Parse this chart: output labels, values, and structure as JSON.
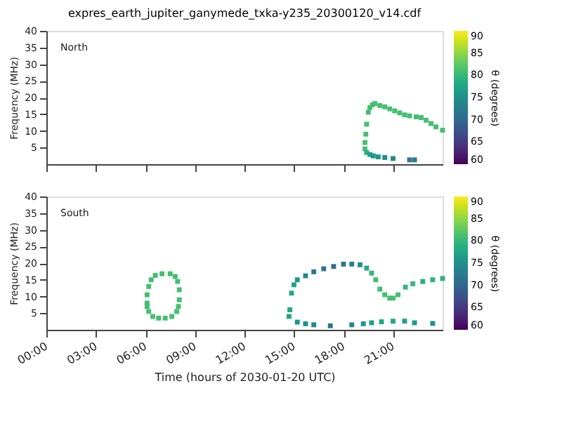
{
  "chart_data": [
    {
      "type": "scatter",
      "title": "expres_earth_jupiter_ganymede_txka-y235_20300120_v14.cdf",
      "ylabel": "Frequency (MHz)",
      "clabel": "θ (degrees)",
      "annotations": [
        "North"
      ],
      "xlim": [
        0,
        24
      ],
      "xticks": [
        {
          "value": 0,
          "label": null
        },
        {
          "value": 3,
          "label": null
        },
        {
          "value": 6,
          "label": null
        },
        {
          "value": 9,
          "label": null
        },
        {
          "value": 12,
          "label": null
        },
        {
          "value": 15,
          "label": null
        },
        {
          "value": 18,
          "label": null
        },
        {
          "value": 21,
          "label": null
        }
      ],
      "ylim": [
        0,
        40
      ],
      "yticks": [
        5,
        10,
        15,
        20,
        25,
        30,
        35,
        40
      ],
      "clim": [
        60,
        90
      ],
      "cticks": [
        60,
        65,
        70,
        75,
        80,
        85,
        90
      ],
      "tick_labels": "y",
      "grid": false,
      "marker": "square",
      "series": [
        {
          "x": [
            19.3,
            19.3,
            19.35,
            19.4,
            19.5,
            19.6,
            19.75,
            19.9,
            20.2,
            20.5,
            20.8,
            21.1,
            21.4,
            21.7,
            22.0,
            22.4,
            22.7,
            23.0,
            23.3,
            23.6,
            24.0,
            19.4,
            19.6,
            19.8,
            20.1,
            20.5,
            21.0,
            22.0,
            22.3
          ],
          "values": [
            4.6,
            6.5,
            9.0,
            12.0,
            15.6,
            17.0,
            17.8,
            18.2,
            17.6,
            17.2,
            16.6,
            16.0,
            15.4,
            14.8,
            14.5,
            14.2,
            14.0,
            13.2,
            12.2,
            11.2,
            10.2,
            3.5,
            2.9,
            2.5,
            2.2,
            2.0,
            1.7,
            1.3,
            1.3
          ],
          "cvalues": [
            81,
            81,
            81,
            81,
            81,
            81,
            81,
            81,
            81,
            81,
            81,
            81,
            81,
            81,
            81,
            81,
            81,
            81,
            81,
            81,
            81,
            79,
            77,
            76,
            76,
            75,
            74,
            72,
            72
          ]
        }
      ]
    },
    {
      "type": "scatter",
      "ylabel": "Frequency (MHz)",
      "xlabel": "Time (hours of 2030-01-20 UTC)",
      "clabel": "θ (degrees)",
      "annotations": [
        "South"
      ],
      "xlim": [
        0,
        24
      ],
      "xticks": [
        {
          "value": 0,
          "label": "00:00"
        },
        {
          "value": 3,
          "label": "03:00"
        },
        {
          "value": 6,
          "label": "06:00"
        },
        {
          "value": 9,
          "label": "09:00"
        },
        {
          "value": 12,
          "label": "12:00"
        },
        {
          "value": 15,
          "label": "15:00"
        },
        {
          "value": 18,
          "label": "18:00"
        },
        {
          "value": 21,
          "label": "21:00"
        }
      ],
      "ylim": [
        0,
        40
      ],
      "yticks": [
        5,
        10,
        15,
        20,
        25,
        30,
        35,
        40
      ],
      "clim": [
        60,
        90
      ],
      "cticks": [
        60,
        65,
        70,
        75,
        80,
        85,
        90
      ],
      "grid": false,
      "marker": "square",
      "series": [
        {
          "x": [
            6.1,
            6.1,
            6.2,
            6.35,
            6.6,
            7.0,
            7.5,
            7.8,
            7.95,
            8.05,
            8.05,
            8.0,
            7.9,
            7.6,
            7.2,
            6.8,
            6.45,
            6.2,
            6.1,
            14.7,
            14.75,
            14.85,
            15.0,
            15.2,
            15.7,
            16.2,
            16.8,
            17.4,
            18.0,
            18.5,
            19.0,
            19.4,
            19.7,
            19.95,
            20.2,
            20.5,
            20.8,
            21.0,
            21.3,
            21.75,
            22.2,
            22.8,
            23.4,
            24.0,
            15.2,
            15.7,
            16.2,
            17.2,
            18.5,
            19.2,
            19.7,
            20.3,
            21.0,
            21.7,
            22.3,
            23.4
          ],
          "values": [
            8.0,
            10.5,
            13.0,
            15.0,
            16.3,
            16.8,
            16.8,
            16.0,
            14.5,
            12.0,
            9.0,
            7.0,
            5.5,
            4.0,
            3.5,
            3.5,
            4.0,
            5.5,
            7.0,
            4.0,
            6.0,
            11.0,
            13.5,
            15.0,
            16.2,
            17.4,
            18.3,
            19.0,
            19.7,
            19.7,
            19.5,
            18.5,
            17.0,
            15.0,
            12.2,
            10.5,
            9.5,
            9.5,
            10.5,
            12.8,
            13.8,
            14.5,
            15.0,
            15.4,
            2.3,
            1.8,
            1.5,
            1.2,
            1.5,
            1.8,
            2.1,
            2.4,
            2.6,
            2.6,
            2.1,
            1.9
          ],
          "cvalues": [
            81,
            81,
            81,
            81,
            81,
            81,
            81,
            81,
            81,
            81,
            81,
            81,
            81,
            81,
            81,
            81,
            81,
            81,
            81,
            78,
            78,
            78,
            77,
            76,
            74,
            72,
            72,
            71,
            72,
            73,
            75,
            78,
            80,
            81,
            81,
            81,
            81,
            81,
            81,
            80,
            80,
            79,
            79,
            79,
            76,
            75,
            74,
            72,
            74,
            76,
            77,
            78,
            78,
            77,
            76,
            75
          ]
        }
      ]
    }
  ]
}
